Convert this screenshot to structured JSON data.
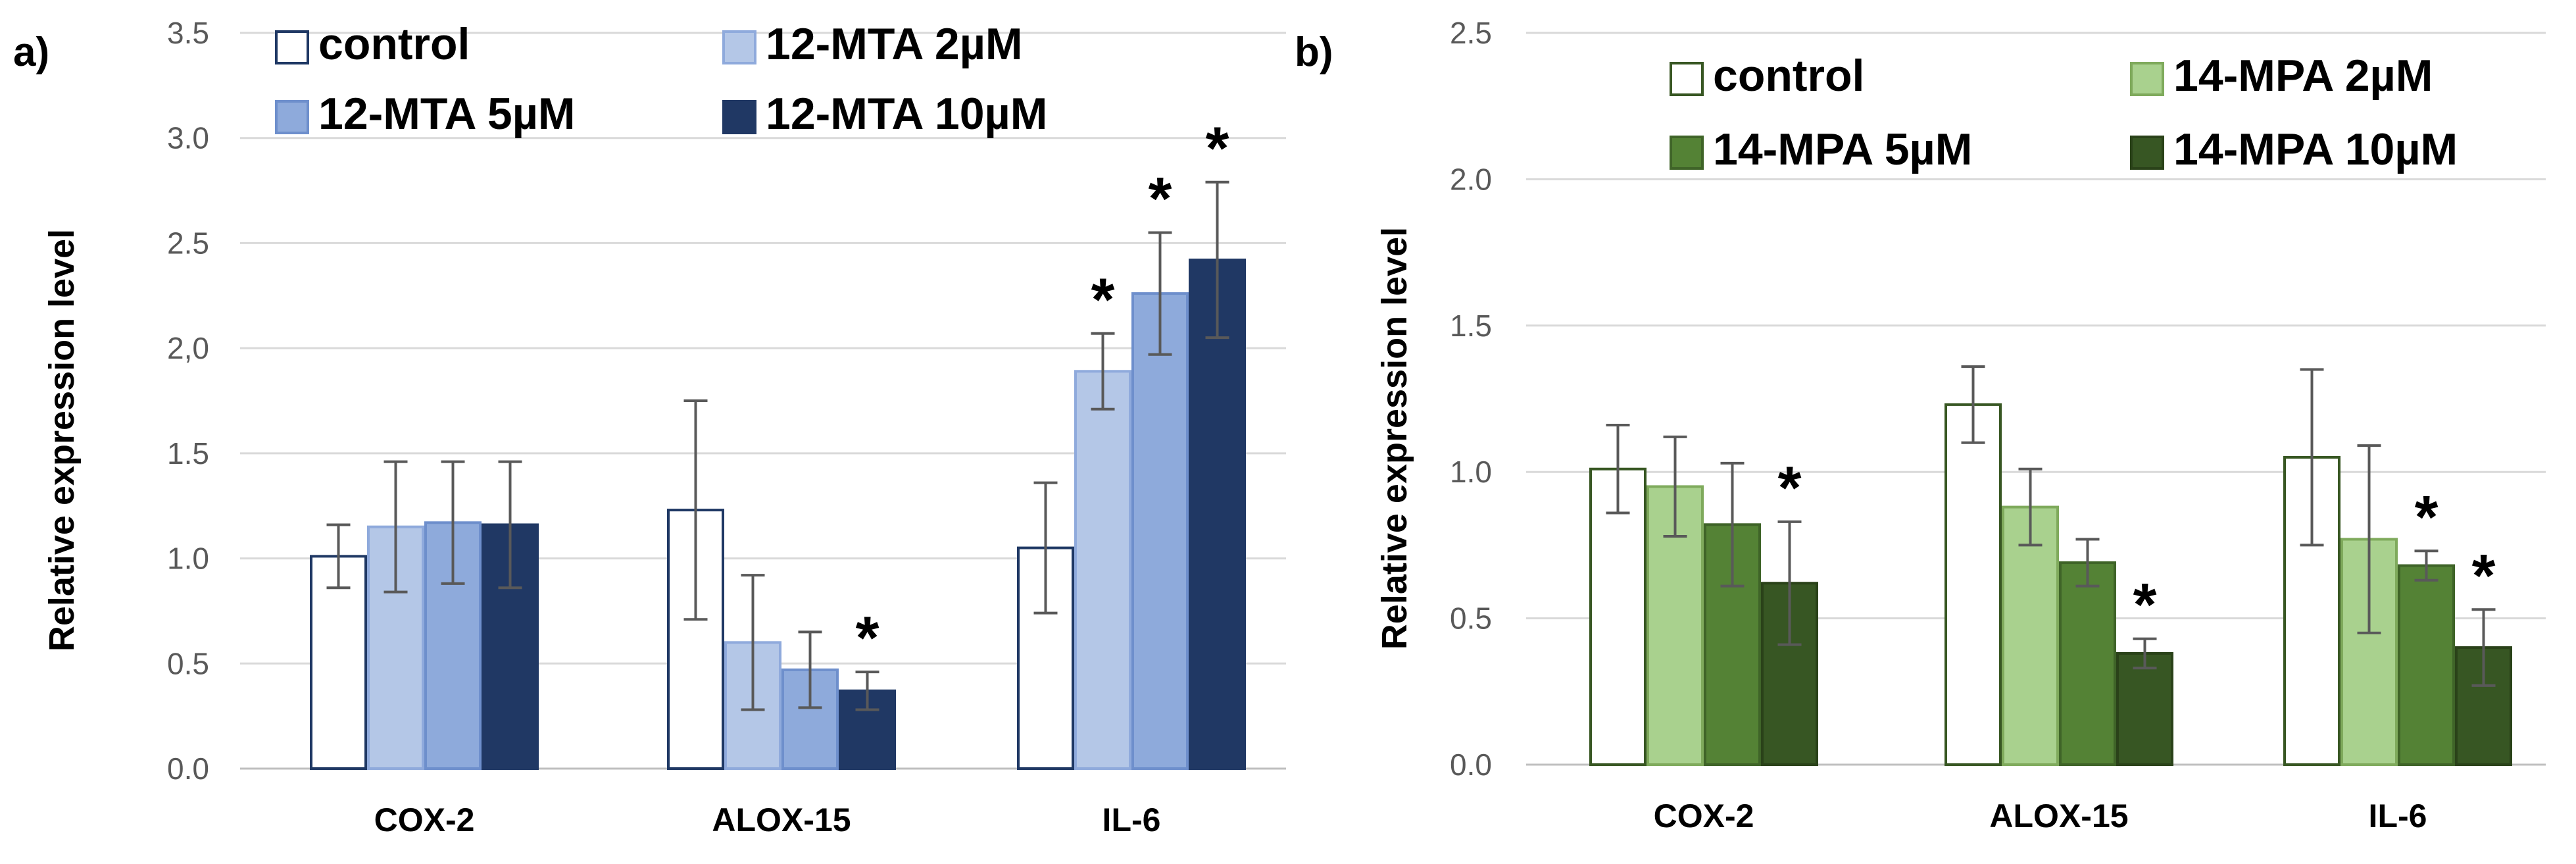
{
  "chart_data": [
    {
      "type": "bar",
      "panel_label": "a)",
      "title": "",
      "xlabel": "",
      "ylabel": "Relative expression level",
      "ylim": [
        0,
        3.5
      ],
      "y_ticks": [
        "0.0",
        "0.5",
        "1.0",
        "1.5",
        "2,0",
        "2.5",
        "3.0",
        "3.5"
      ],
      "grid": true,
      "categories": [
        "COX-2",
        "ALOX-15",
        "IL-6"
      ],
      "series": [
        {
          "name": "control",
          "color": "#ffffff",
          "stroke": "#1f3864",
          "values": [
            1.01,
            1.23,
            1.05
          ],
          "errors": [
            0.15,
            0.52,
            0.31
          ]
        },
        {
          "name": "12-MTA 2µM",
          "color": "#b4c7e7",
          "stroke": "#8faadc",
          "values": [
            1.15,
            0.6,
            1.89
          ],
          "errors": [
            0.31,
            0.32,
            0.18
          ]
        },
        {
          "name": "12-MTA 5µM",
          "color": "#8eaadb",
          "stroke": "#6e8fcc",
          "values": [
            1.17,
            0.47,
            2.26
          ],
          "errors": [
            0.29,
            0.18,
            0.29
          ]
        },
        {
          "name": "12-MTA 10µM",
          "color": "#203864",
          "stroke": "#203864",
          "values": [
            1.16,
            0.37,
            2.42
          ],
          "errors": [
            0.3,
            0.09,
            0.37
          ]
        }
      ],
      "significance": [
        {
          "category": "ALOX-15",
          "series": "12-MTA 10µM",
          "mark": "*"
        },
        {
          "category": "IL-6",
          "series": "12-MTA 2µM",
          "mark": "*"
        },
        {
          "category": "IL-6",
          "series": "12-MTA 5µM",
          "mark": "*"
        },
        {
          "category": "IL-6",
          "series": "12-MTA 10µM",
          "mark": "*"
        }
      ],
      "legend_position": "top"
    },
    {
      "type": "bar",
      "panel_label": "b)",
      "title": "",
      "xlabel": "",
      "ylabel": "Relative expression level",
      "ylim": [
        0,
        2.5
      ],
      "y_ticks": [
        "0.0",
        "0.5",
        "1.0",
        "1.5",
        "2.0",
        "2.5"
      ],
      "grid": true,
      "categories": [
        "COX-2",
        "ALOX-15",
        "IL-6"
      ],
      "series": [
        {
          "name": "control",
          "color": "#ffffff",
          "stroke": "#385723",
          "values": [
            1.01,
            1.23,
            1.05
          ],
          "errors": [
            0.15,
            0.13,
            0.3
          ]
        },
        {
          "name": "14-MPA 2µM",
          "color": "#a9d18e",
          "stroke": "#7faa5c",
          "values": [
            0.95,
            0.88,
            0.77
          ],
          "errors": [
            0.17,
            0.13,
            0.32
          ]
        },
        {
          "name": "14-MPA 5µM",
          "color": "#548235",
          "stroke": "#3f6428",
          "values": [
            0.82,
            0.69,
            0.68
          ],
          "errors": [
            0.21,
            0.08,
            0.05
          ]
        },
        {
          "name": "14-MPA 10µM",
          "color": "#375623",
          "stroke": "#2a4219",
          "values": [
            0.62,
            0.38,
            0.4
          ],
          "errors": [
            0.21,
            0.05,
            0.13
          ]
        }
      ],
      "significance": [
        {
          "category": "COX-2",
          "series": "14-MPA 10µM",
          "mark": "*"
        },
        {
          "category": "ALOX-15",
          "series": "14-MPA 10µM",
          "mark": "*"
        },
        {
          "category": "IL-6",
          "series": "14-MPA 5µM",
          "mark": "*"
        },
        {
          "category": "IL-6",
          "series": "14-MPA 10µM",
          "mark": "*"
        }
      ],
      "legend_position": "top"
    }
  ]
}
